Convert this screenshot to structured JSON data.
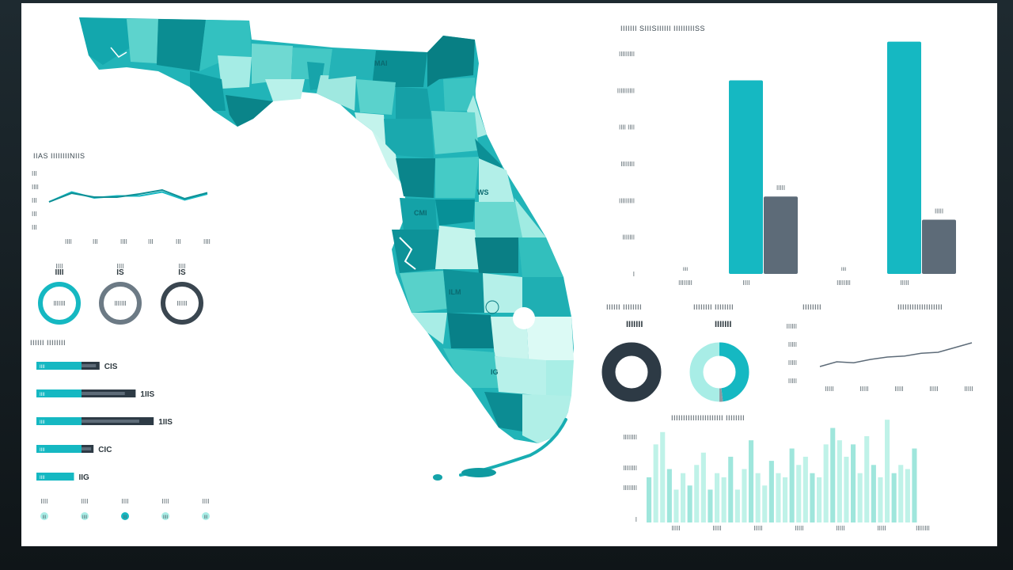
{
  "colors": {
    "teal": "#15b8c2",
    "teal_dark": "#0f8f95",
    "teal_light": "#a8ede6",
    "slate": "#5d6b78",
    "navy": "#2d3a45",
    "mint": "#bff2e8"
  },
  "map": {
    "labels": [
      "MAI",
      "WS",
      "CMI",
      "ILM",
      "IG"
    ]
  },
  "chart_data": [
    {
      "type": "line",
      "title": "IIAS IIIIIIIINIIS",
      "y_ticks": [
        "III",
        "IIII",
        "III",
        "III",
        "III"
      ],
      "x_ticks": [
        "IIII",
        "III",
        "IIII",
        "III",
        "III",
        "IIII"
      ],
      "series": [
        {
          "values": [
            4,
            6.5,
            5,
            5.5,
            5.5,
            6.5,
            4.5,
            6
          ]
        },
        {
          "values": [
            4,
            6.2,
            5.2,
            5.2,
            6,
            7,
            4.8,
            6.3
          ]
        }
      ],
      "ylim": [
        0,
        10
      ]
    },
    {
      "type": "pie",
      "rings": [
        {
          "label": "IIII",
          "sub": "IIIIIII",
          "value": 100,
          "color": "#15b8c2"
        },
        {
          "label": "IS",
          "sub": "IIIIIII",
          "value": 100,
          "color": "#6c7a85"
        },
        {
          "label": "IS",
          "sub": "IIIIII",
          "value": 100,
          "color": "#3a4650"
        }
      ]
    },
    {
      "type": "bar",
      "title": "IIIIII IIIIIIII",
      "orientation": "horizontal",
      "rows": [
        {
          "label": "IIII",
          "value_label": "CIS",
          "a": 30,
          "b": 42
        },
        {
          "label": "IIII",
          "value_label": "1IIS",
          "a": 30,
          "b": 66
        },
        {
          "label": "IIII",
          "value_label": "1IIS",
          "a": 30,
          "b": 78
        },
        {
          "label": "IIII",
          "value_label": "CIC",
          "a": 30,
          "b": 38
        },
        {
          "label": "IIII",
          "value_label": "IIG",
          "a": 25,
          "b": 25
        }
      ],
      "footer_top": [
        "IIII",
        "IIII",
        "IIII",
        "IIII",
        "IIII"
      ],
      "footer_bottom": [
        "III",
        "IIII",
        "III",
        "IIII",
        "III"
      ],
      "xlim": [
        0,
        100
      ]
    },
    {
      "type": "bar",
      "title": "IIIIIII SIIISIIIIII IIIIIIIIISS",
      "categories": [
        "IIIIIIII",
        "IIII",
        "IIIIIIII",
        "IIIII"
      ],
      "y_ticks": [
        "IIIIIIIII",
        "IIIIIIIIII",
        "IIII IIII",
        "IIIIIIII",
        "IIIIIIIII",
        "IIIIIII",
        "I"
      ],
      "series": [
        {
          "values": [
            0,
            225,
            0,
            270
          ],
          "color": "#15b8c2"
        },
        {
          "values": [
            0,
            90,
            0,
            63
          ],
          "color": "#5d6b78"
        }
      ],
      "series_value_labels": [
        "IIIII",
        "IIIII"
      ],
      "small_labels": [
        "IIII",
        "IIII"
      ],
      "ylim": [
        0,
        300
      ]
    },
    {
      "type": "pie",
      "title": "IIIIII IIIIIIII",
      "pct_label": "IIIIIII",
      "slices": [
        {
          "value": 100,
          "color": "#2d3a45"
        }
      ]
    },
    {
      "type": "pie",
      "title": "IIIIIIII IIIIIIII",
      "pct_label": "IIIIIII",
      "slices": [
        {
          "value": 48,
          "color": "#15b8c2"
        },
        {
          "value": 2,
          "color": "#8f9aa2"
        },
        {
          "value": 50,
          "color": "#a8ede6"
        }
      ]
    },
    {
      "type": "line",
      "title": "IIIIIIII",
      "title2": "IIIIIIIIIIIIIIIIIII",
      "y_ticks": [
        "IIIIII",
        "IIIII",
        "IIIII",
        "IIIII"
      ],
      "x_ticks": [
        "IIIII",
        "IIIII",
        "IIIII",
        "IIIII",
        "IIIII"
      ],
      "series": [
        {
          "values": [
            2,
            3,
            2.8,
            3.5,
            4,
            4.2,
            4.8,
            5,
            6,
            7
          ]
        }
      ],
      "ylim": [
        0,
        10
      ]
    },
    {
      "type": "bar",
      "title": "IIIIIIIIIIIIIIIIIIIIII IIIIIIII",
      "y_ticks": [
        "IIIIIIII",
        "IIIIIIII",
        "IIIIIIII",
        "I"
      ],
      "x_ticks": [
        "IIIII",
        "IIIII",
        "IIIII",
        "IIIII",
        "IIIII",
        "IIIII",
        "IIIIIIII"
      ],
      "values": [
        55,
        95,
        110,
        65,
        40,
        60,
        45,
        70,
        85,
        40,
        60,
        55,
        80,
        40,
        65,
        100,
        60,
        45,
        75,
        60,
        55,
        90,
        70,
        80,
        60,
        55,
        95,
        115,
        100,
        80,
        95,
        60,
        105,
        70,
        55,
        125,
        60,
        70,
        65,
        90
      ],
      "ylim": [
        0,
        130
      ]
    }
  ]
}
